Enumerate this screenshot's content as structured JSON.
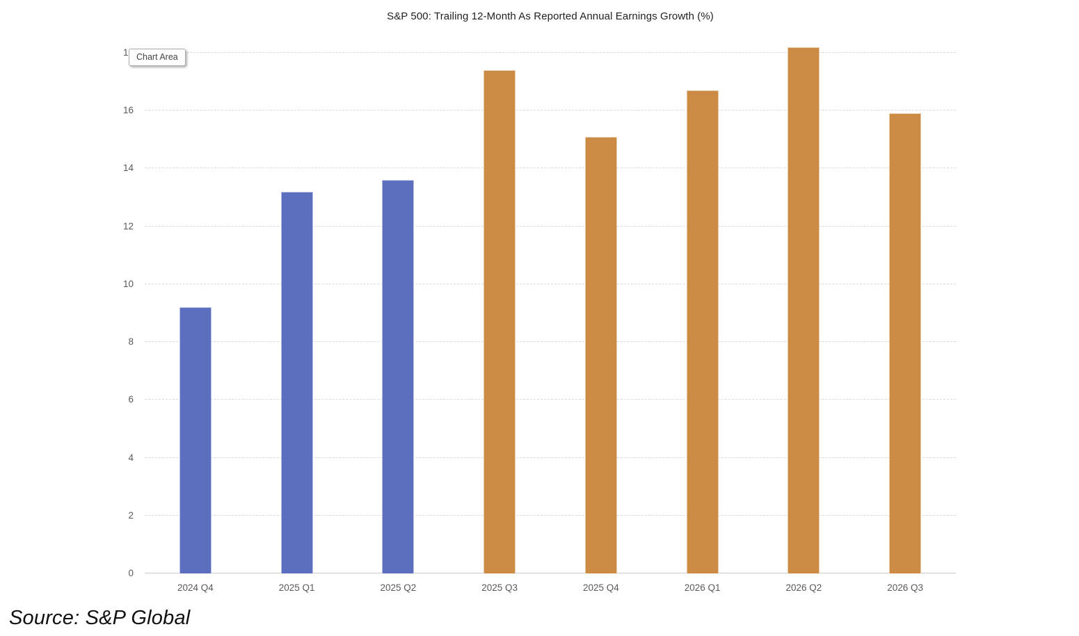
{
  "chart_data": {
    "type": "bar",
    "title": "S&P 500: Trailing 12-Month As Reported Annual Earnings Growth (%)",
    "categories": [
      "2024 Q4",
      "2025 Q1",
      "2025 Q2",
      "2025 Q3",
      "2025 Q4",
      "2026 Q1",
      "2026 Q2",
      "2026 Q3"
    ],
    "values": [
      9.2,
      13.2,
      13.6,
      17.4,
      15.1,
      16.7,
      18.2,
      15.9
    ],
    "bar_colors": [
      "#5B6FBE",
      "#5B6FBE",
      "#5B6FBE",
      "#CC8B44",
      "#CC8B44",
      "#CC8B44",
      "#CC8B44",
      "#CC8B44"
    ],
    "ylim": [
      0,
      18
    ],
    "yticks": [
      0,
      2,
      4,
      6,
      8,
      10,
      12,
      14,
      16,
      18
    ],
    "xlabel": "",
    "ylabel": "",
    "grid": "horizontal-dashed",
    "legend": "none"
  },
  "tooltip": {
    "label": "Chart Area"
  },
  "source": {
    "text": "Source: S&P Global"
  },
  "colors": {
    "bar_blue": "#5B6FBE",
    "bar_orange": "#CC8B44",
    "gridline": "#D9D9D9",
    "axis_line": "#C8C8C8",
    "tick_label": "#595959",
    "title_text": "#1F1F1F"
  }
}
